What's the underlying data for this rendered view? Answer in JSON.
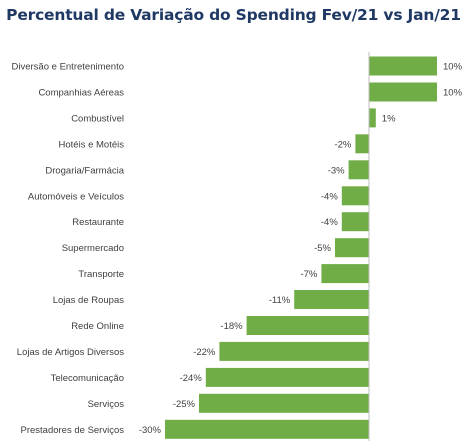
{
  "chart_data": {
    "type": "bar",
    "orientation": "horizontal",
    "title": "Percentual de Variação do Spending  Fev/21 vs Jan/21",
    "categories": [
      "Diversão e Entretenimento",
      "Companhias Aéreas",
      "Combustível",
      "Hotéis e Motéis",
      "Drogaria/Farmácia",
      "Automóveis e Veículos",
      "Restaurante",
      "Supermercado",
      "Transporte",
      "Lojas de Roupas",
      "Rede Online",
      "Lojas de Artigos Diversos",
      "Telecomunicação",
      "Serviços",
      "Prestadores de Serviços"
    ],
    "values": [
      10,
      10,
      1,
      -2,
      -3,
      -4,
      -4,
      -5,
      -7,
      -11,
      -18,
      -22,
      -24,
      -25,
      -30
    ],
    "value_labels": [
      "10%",
      "10%",
      "1%",
      "-2%",
      "-3%",
      "-4%",
      "-4%",
      "-5%",
      "-7%",
      "-11%",
      "-18%",
      "-22%",
      "-24%",
      "-25%",
      "-30%"
    ],
    "unit": "%",
    "xlim": [
      -30,
      10
    ],
    "bar_color": "#70ad47",
    "title_color": "#1f3864",
    "grid": false,
    "legend": "none"
  }
}
